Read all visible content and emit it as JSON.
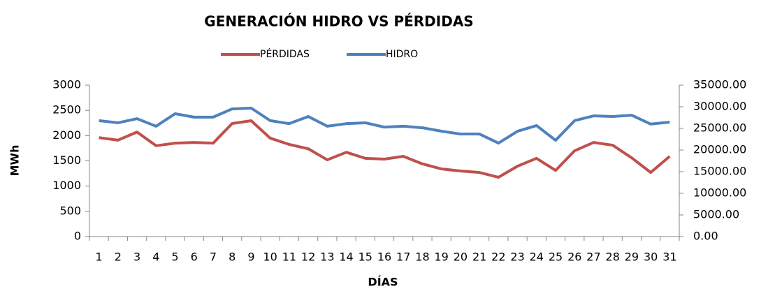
{
  "chart_data": {
    "type": "line",
    "title": "GENERACIÓN HIDRO VS PÉRDIDAS",
    "xlabel": "DÍAS",
    "ylabel": "MWh",
    "categories": [
      "1",
      "2",
      "3",
      "4",
      "5",
      "6",
      "7",
      "8",
      "9",
      "10",
      "11",
      "12",
      "13",
      "14",
      "15",
      "16",
      "17",
      "18",
      "19",
      "20",
      "21",
      "22",
      "23",
      "24",
      "25",
      "26",
      "27",
      "28",
      "29",
      "30",
      "31"
    ],
    "series": [
      {
        "name": "PÉRDIDAS",
        "color": "#c0504d",
        "values": [
          1960,
          1910,
          2070,
          1800,
          1850,
          1865,
          1850,
          2240,
          2295,
          1950,
          1825,
          1740,
          1520,
          1670,
          1550,
          1535,
          1590,
          1440,
          1340,
          1300,
          1270,
          1175,
          1395,
          1550,
          1310,
          1700,
          1865,
          1810,
          1560,
          1270,
          1590
        ]
      },
      {
        "name": "HIDRO",
        "color": "#4f81bd",
        "axis": "y2",
        "values": [
          26800,
          26300,
          27250,
          25500,
          28400,
          27600,
          27600,
          29500,
          29700,
          26800,
          26100,
          27750,
          25500,
          26100,
          26300,
          25300,
          25500,
          25150,
          24350,
          23700,
          23700,
          21600,
          24350,
          25650,
          22250,
          26800,
          27900,
          27750,
          28050,
          26000,
          26450
        ]
      }
    ],
    "ylim": [
      0,
      3000
    ],
    "yticks": [
      0,
      500,
      1000,
      1500,
      2000,
      2500,
      3000
    ],
    "y2lim": [
      0,
      35000
    ],
    "y2ticks": [
      {
        "value": 0,
        "label": "0.00"
      },
      {
        "value": 5000,
        "label": "5000.00"
      },
      {
        "value": 10000,
        "label": "10000.00"
      },
      {
        "value": 15000,
        "label": "15000.00"
      },
      {
        "value": 20000,
        "label": "20000.00"
      },
      {
        "value": 25000,
        "label": "25000.00"
      },
      {
        "value": 30000,
        "label": "30000.00"
      },
      {
        "value": 35000,
        "label": "35000.00"
      }
    ],
    "legend": "top"
  }
}
